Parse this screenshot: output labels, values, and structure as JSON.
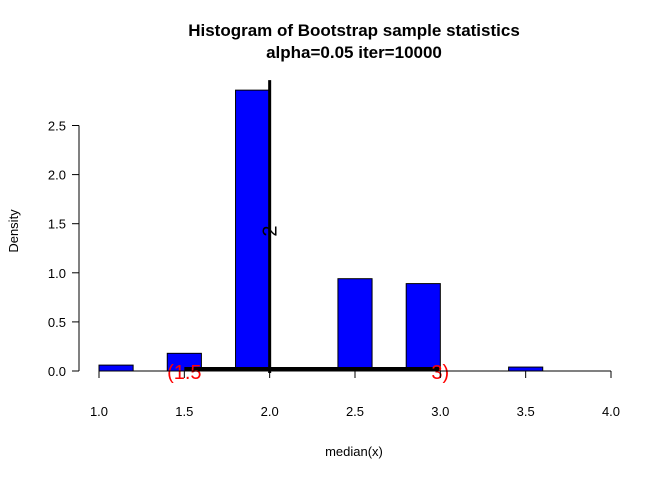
{
  "chart_data": {
    "type": "bar",
    "title": "Histogram of Bootstrap sample statistics",
    "subtitle": "alpha=0.05 iter=10000",
    "xlabel": "median(x)",
    "ylabel": "Density",
    "xlim": [
      1.0,
      4.0
    ],
    "ylim": [
      0,
      2.85
    ],
    "xticks": [
      "1.0",
      "1.5",
      "2.0",
      "2.5",
      "3.0",
      "3.5",
      "4.0"
    ],
    "yticks": [
      "0.0",
      "0.5",
      "1.0",
      "1.5",
      "2.0",
      "2.5"
    ],
    "bins": [
      {
        "x0": 1.0,
        "x1": 1.2,
        "density": 0.06
      },
      {
        "x0": 1.4,
        "x1": 1.6,
        "density": 0.18
      },
      {
        "x0": 1.8,
        "x1": 2.0,
        "density": 2.86
      },
      {
        "x0": 2.4,
        "x1": 2.6,
        "density": 0.94
      },
      {
        "x0": 2.8,
        "x1": 3.0,
        "density": 0.89
      },
      {
        "x0": 3.4,
        "x1": 3.6,
        "density": 0.04
      }
    ],
    "bar_color": "#0000ff",
    "center_line": {
      "x": 2.0,
      "label": "2"
    },
    "interval": {
      "lower": 1.5,
      "upper": 3.0,
      "lower_label": "(1.5",
      "upper_label": "3)",
      "label_color": "#ff0000"
    },
    "grid": false,
    "legend": "none"
  }
}
